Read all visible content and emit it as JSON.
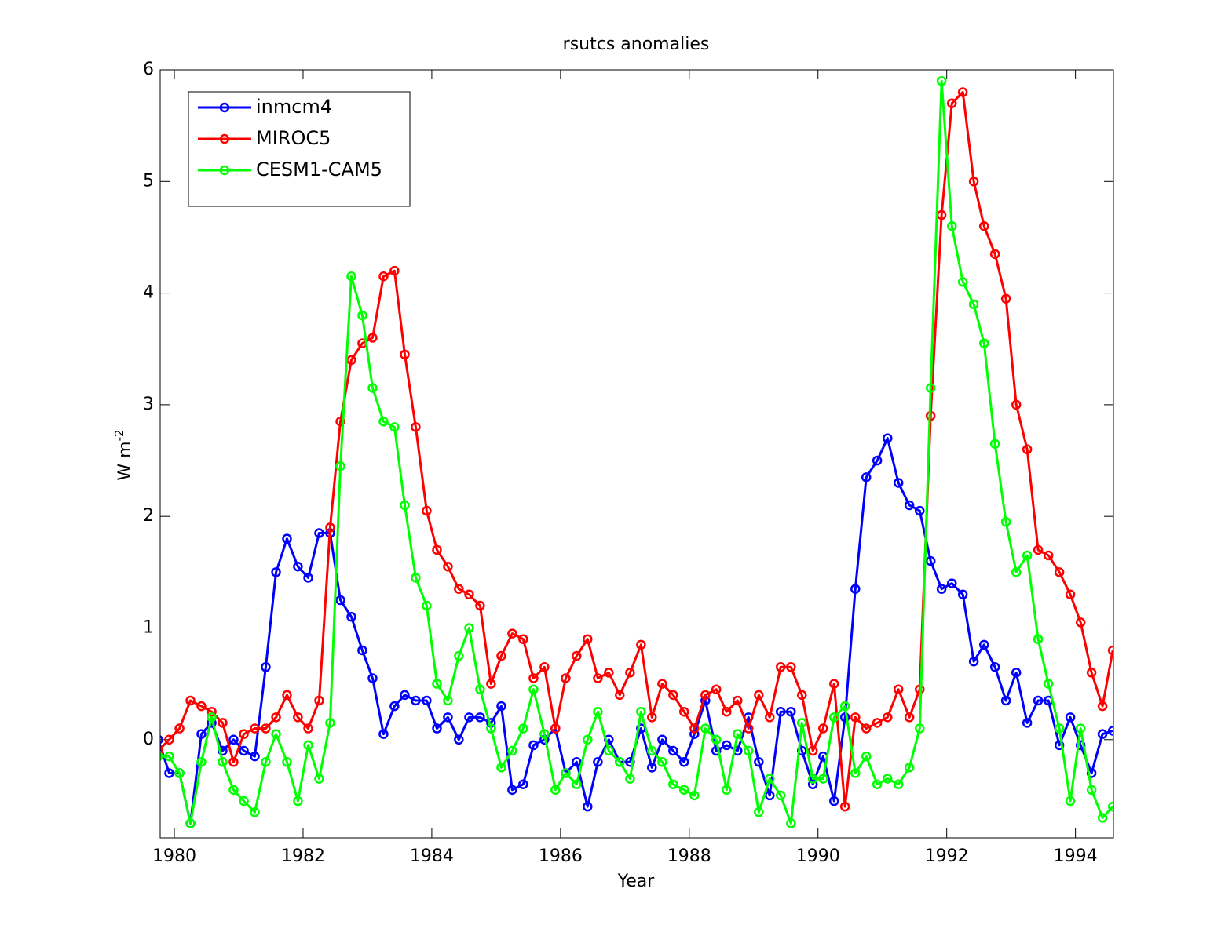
{
  "chart_data": {
    "type": "line",
    "title": "rsutcs anomalies",
    "xlabel": "Year",
    "ylabel": {
      "text": "W m",
      "sup": "-2"
    },
    "xlim": [
      1979.78,
      1994.59
    ],
    "ylim": [
      -0.88,
      6
    ],
    "xticks": [
      1980,
      1982,
      1984,
      1986,
      1988,
      1990,
      1992,
      1994
    ],
    "yticks": [
      0,
      1,
      2,
      3,
      4,
      5,
      6
    ],
    "legend": "upper left",
    "markers": true,
    "x": [
      1979.75,
      1979.92,
      1980.08,
      1980.25,
      1980.42,
      1980.58,
      1980.75,
      1980.92,
      1981.08,
      1981.25,
      1981.42,
      1981.58,
      1981.75,
      1981.92,
      1982.08,
      1982.25,
      1982.42,
      1982.58,
      1982.75,
      1982.92,
      1983.08,
      1983.25,
      1983.42,
      1983.58,
      1983.75,
      1983.92,
      1984.08,
      1984.25,
      1984.42,
      1984.58,
      1984.75,
      1984.92,
      1985.08,
      1985.25,
      1985.42,
      1985.58,
      1985.75,
      1985.92,
      1986.08,
      1986.25,
      1986.42,
      1986.58,
      1986.75,
      1986.92,
      1987.08,
      1987.25,
      1987.42,
      1987.58,
      1987.75,
      1987.92,
      1988.08,
      1988.25,
      1988.42,
      1988.58,
      1988.75,
      1988.92,
      1989.08,
      1989.25,
      1989.42,
      1989.58,
      1989.75,
      1989.92,
      1990.08,
      1990.25,
      1990.42,
      1990.58,
      1990.75,
      1990.92,
      1991.08,
      1991.25,
      1991.42,
      1991.58,
      1991.75,
      1991.92,
      1992.08,
      1992.25,
      1992.42,
      1992.58,
      1992.75,
      1992.92,
      1993.08,
      1993.25,
      1993.42,
      1993.58,
      1993.75,
      1993.92,
      1994.08,
      1994.25,
      1994.42,
      1994.58
    ],
    "series": [
      {
        "name": "inmcm4",
        "color": "#0000ff",
        "values": [
          0.0,
          -0.3,
          -0.3,
          -0.75,
          0.05,
          0.15,
          -0.1,
          0.0,
          -0.1,
          -0.15,
          0.65,
          1.5,
          1.8,
          1.55,
          1.45,
          1.85,
          1.85,
          1.25,
          1.1,
          0.8,
          0.55,
          0.05,
          0.3,
          0.4,
          0.35,
          0.35,
          0.1,
          0.2,
          0.0,
          0.2,
          0.2,
          0.15,
          0.3,
          -0.45,
          -0.4,
          -0.05,
          0.0,
          0.1,
          -0.3,
          -0.2,
          -0.6,
          -0.2,
          0.0,
          -0.2,
          -0.2,
          0.1,
          -0.25,
          0.0,
          -0.1,
          -0.2,
          0.05,
          0.35,
          -0.1,
          -0.05,
          -0.1,
          0.2,
          -0.2,
          -0.5,
          0.25,
          0.25,
          -0.1,
          -0.4,
          -0.15,
          -0.55,
          0.2,
          1.35,
          2.35,
          2.5,
          2.7,
          2.3,
          2.1,
          2.05,
          1.6,
          1.35,
          1.4,
          1.3,
          0.7,
          0.85,
          0.65,
          0.35,
          0.6,
          0.15,
          0.35,
          0.35,
          -0.05,
          0.2,
          -0.05,
          -0.3,
          0.05,
          0.08
        ]
      },
      {
        "name": "MIROC5",
        "color": "#ff0000",
        "values": [
          -0.1,
          0.0,
          0.1,
          0.35,
          0.3,
          0.25,
          0.15,
          -0.2,
          0.05,
          0.1,
          0.1,
          0.2,
          0.4,
          0.2,
          0.1,
          0.35,
          1.9,
          2.85,
          3.4,
          3.55,
          3.6,
          4.15,
          4.2,
          3.45,
          2.8,
          2.05,
          1.7,
          1.55,
          1.35,
          1.3,
          1.2,
          0.5,
          0.75,
          0.95,
          0.9,
          0.55,
          0.65,
          0.1,
          0.55,
          0.75,
          0.9,
          0.55,
          0.6,
          0.4,
          0.6,
          0.85,
          0.2,
          0.5,
          0.4,
          0.25,
          0.1,
          0.4,
          0.45,
          0.25,
          0.35,
          0.1,
          0.4,
          0.2,
          0.65,
          0.65,
          0.4,
          -0.1,
          0.1,
          0.5,
          -0.6,
          0.2,
          0.1,
          0.15,
          0.2,
          0.45,
          0.2,
          0.45,
          2.9,
          4.7,
          5.7,
          5.8,
          5.0,
          4.6,
          4.35,
          3.95,
          3.0,
          2.6,
          1.7,
          1.65,
          1.5,
          1.3,
          1.05,
          0.6,
          0.3,
          0.8
        ]
      },
      {
        "name": "CESM1-CAM5",
        "color": "#00ff00",
        "values": [
          -0.15,
          -0.15,
          -0.3,
          -0.75,
          -0.2,
          0.2,
          -0.2,
          -0.45,
          -0.55,
          -0.65,
          -0.2,
          0.05,
          -0.2,
          -0.55,
          -0.05,
          -0.35,
          0.15,
          2.45,
          4.15,
          3.8,
          3.15,
          2.85,
          2.8,
          2.1,
          1.45,
          1.2,
          0.5,
          0.35,
          0.75,
          1.0,
          0.45,
          0.1,
          -0.25,
          -0.1,
          0.1,
          0.45,
          0.05,
          -0.45,
          -0.3,
          -0.4,
          0.0,
          0.25,
          -0.1,
          -0.2,
          -0.35,
          0.25,
          -0.1,
          -0.2,
          -0.4,
          -0.45,
          -0.5,
          0.1,
          0.0,
          -0.45,
          0.05,
          -0.1,
          -0.65,
          -0.35,
          -0.5,
          -0.75,
          0.15,
          -0.35,
          -0.35,
          0.2,
          0.3,
          -0.3,
          -0.15,
          -0.4,
          -0.35,
          -0.4,
          -0.25,
          0.1,
          3.15,
          5.9,
          4.6,
          4.1,
          3.9,
          3.55,
          2.65,
          1.95,
          1.5,
          1.65,
          0.9,
          0.5,
          0.1,
          -0.55,
          0.1,
          -0.45,
          -0.7,
          -0.6
        ]
      }
    ]
  }
}
